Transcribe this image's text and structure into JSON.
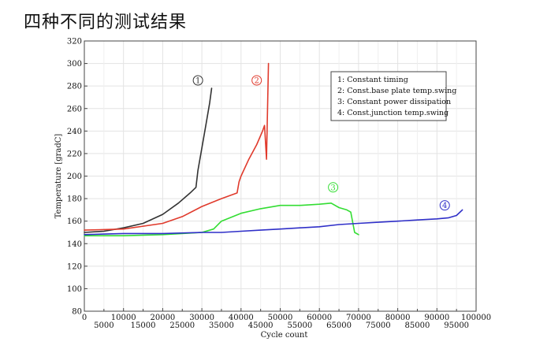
{
  "page": {
    "title": "四种不同的测试结果"
  },
  "chart_data": {
    "type": "line",
    "title": "",
    "xlabel": "Cycle count",
    "ylabel": "Temperature [gradC]",
    "xlim": [
      0,
      100000
    ],
    "ylim": [
      80,
      320
    ],
    "grid": true,
    "legend_position": "top-right",
    "x_ticks_upper": [
      "0",
      "10000",
      "20000",
      "30000",
      "40000",
      "50000",
      "60000",
      "70000",
      "80000",
      "90000",
      "100000"
    ],
    "x_ticks_lower": [
      "5000",
      "15000",
      "25000",
      "35000",
      "45000",
      "55000",
      "65000",
      "75000",
      "85000",
      "95000"
    ],
    "y_ticks": [
      "80",
      "100",
      "120",
      "140",
      "160",
      "180",
      "200",
      "220",
      "240",
      "260",
      "280",
      "300",
      "320"
    ],
    "legend": [
      "1: Constant timing",
      "2: Const.base plate temp.swing",
      "3: Constant power dissipation",
      "4: Const.junction temp.swing"
    ],
    "series": [
      {
        "marker": "1",
        "color": "#333333",
        "marker_at": [
          29000,
          285
        ],
        "x": [
          0,
          5000,
          10000,
          15000,
          20000,
          24000,
          27000,
          28500,
          29000,
          30000,
          31000,
          32000,
          32500
        ],
        "y": [
          150,
          151,
          154,
          158,
          166,
          176,
          185,
          190,
          205,
          225,
          245,
          265,
          278
        ]
      },
      {
        "marker": "2",
        "color": "#e03a2c",
        "marker_at": [
          44000,
          285
        ],
        "x": [
          0,
          10000,
          20000,
          25000,
          30000,
          35000,
          39000,
          39500,
          40000,
          42000,
          44000,
          45500,
          46000,
          46500,
          47000
        ],
        "y": [
          152,
          153,
          158,
          164,
          173,
          180,
          185,
          195,
          200,
          215,
          228,
          240,
          245,
          215,
          300
        ]
      },
      {
        "marker": "3",
        "color": "#33dd33",
        "marker_at": [
          63500,
          190
        ],
        "x": [
          0,
          10000,
          20000,
          30000,
          33000,
          35000,
          40000,
          45000,
          50000,
          55000,
          60000,
          63000,
          65000,
          67000,
          68000,
          69000,
          70000
        ],
        "y": [
          147,
          147,
          148,
          150,
          153,
          160,
          167,
          171,
          174,
          174,
          175,
          176,
          172,
          170,
          168,
          150,
          148
        ]
      },
      {
        "marker": "4",
        "color": "#2f2fc8",
        "marker_at": [
          92000,
          174
        ],
        "x": [
          0,
          10000,
          20000,
          30000,
          35000,
          40000,
          45000,
          50000,
          55000,
          60000,
          65000,
          70000,
          75000,
          80000,
          85000,
          90000,
          93000,
          95000,
          96500
        ],
        "y": [
          148,
          149,
          149,
          150,
          150,
          151,
          152,
          153,
          154,
          155,
          157,
          158,
          159,
          160,
          161,
          162,
          163,
          165,
          170
        ]
      }
    ]
  }
}
